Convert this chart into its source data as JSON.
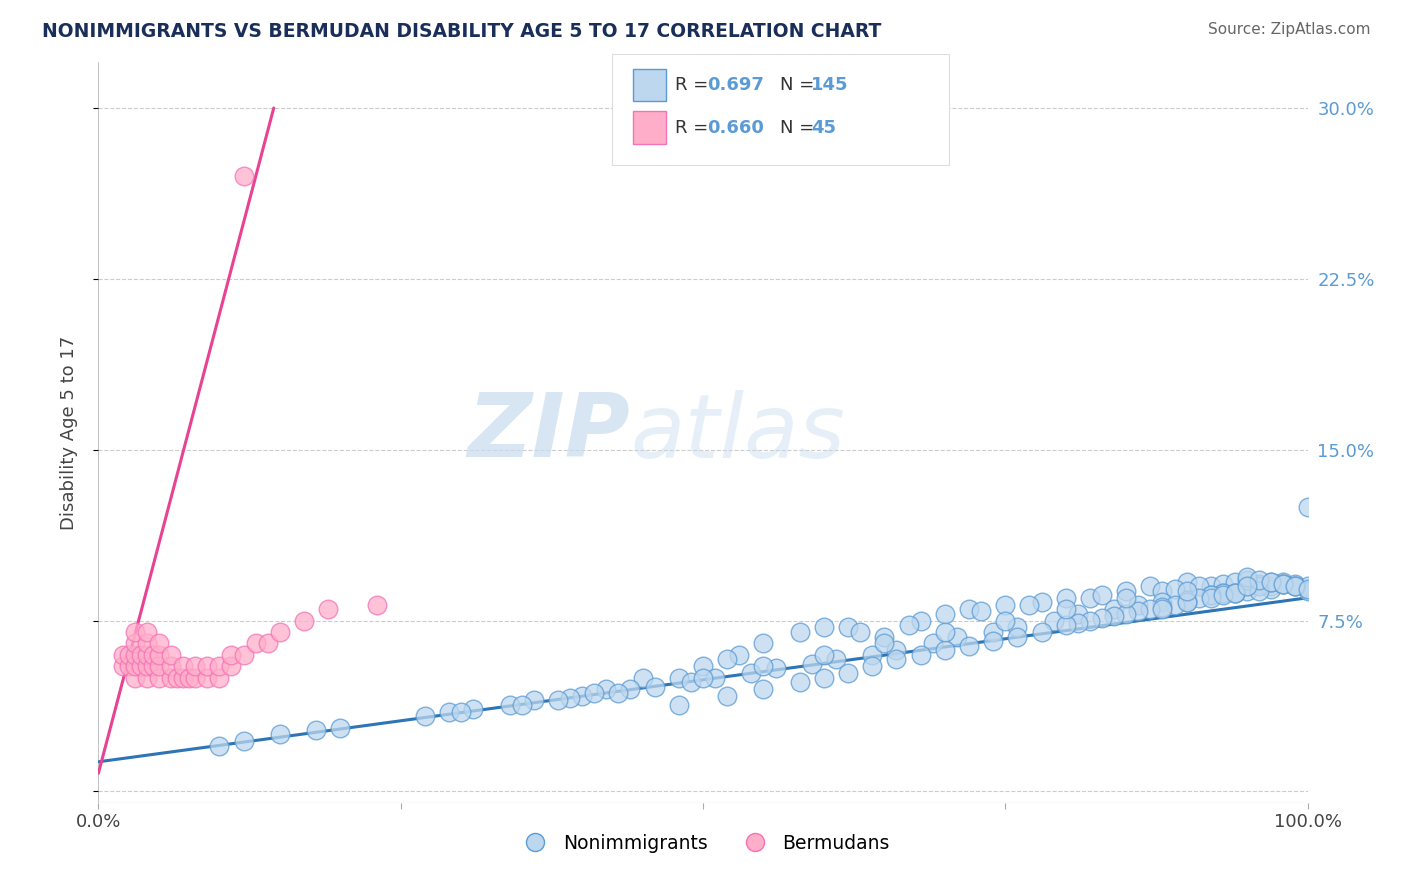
{
  "title": "NONIMMIGRANTS VS BERMUDAN DISABILITY AGE 5 TO 17 CORRELATION CHART",
  "source": "Source: ZipAtlas.com",
  "ylabel": "Disability Age 5 to 17",
  "xlim": [
    0.0,
    1.0
  ],
  "ylim": [
    -0.005,
    0.32
  ],
  "xticks": [
    0.0,
    0.25,
    0.5,
    0.75,
    1.0
  ],
  "xticklabels": [
    "0.0%",
    "",
    "",
    "",
    "100.0%"
  ],
  "yticks_right": [
    0.0,
    0.075,
    0.15,
    0.225,
    0.3
  ],
  "yticklabels_right": [
    "",
    "7.5%",
    "15.0%",
    "22.5%",
    "30.0%"
  ],
  "watermark_zip": "ZIP",
  "watermark_atlas": "atlas",
  "legend_r1": "0.697",
  "legend_n1": "145",
  "legend_r2": "0.660",
  "legend_n2": "45",
  "blue_color": "#5B9BD5",
  "pink_color": "#F472B6",
  "blue_fill": "#BDD7EE",
  "pink_fill": "#FFAEC9",
  "trend_blue": "#2E75B6",
  "trend_pink": "#E84393",
  "background": "#FFFFFF",
  "grid_color": "#CCCCCC",
  "blue_trend_x": [
    0.0,
    1.0
  ],
  "blue_trend_y": [
    0.013,
    0.085
  ],
  "pink_trend_x": [
    0.0,
    0.145
  ],
  "pink_trend_y": [
    0.008,
    0.3
  ],
  "blue_scatter_x": [
    0.5,
    0.53,
    0.48,
    0.55,
    0.42,
    0.45,
    0.4,
    0.58,
    0.6,
    0.52,
    0.62,
    0.65,
    0.68,
    0.63,
    0.7,
    0.72,
    0.67,
    0.75,
    0.73,
    0.78,
    0.8,
    0.77,
    0.82,
    0.85,
    0.83,
    0.87,
    0.88,
    0.9,
    0.92,
    0.89,
    0.91,
    0.93,
    0.94,
    0.95,
    0.96,
    0.97,
    0.98,
    0.99,
    1.0,
    0.95,
    0.93,
    0.97,
    0.96,
    0.98,
    0.99,
    1.0,
    0.94,
    0.92,
    0.9,
    0.88,
    0.86,
    0.84,
    0.81,
    0.79,
    0.76,
    0.74,
    0.71,
    0.69,
    0.66,
    0.64,
    0.61,
    0.59,
    0.56,
    0.54,
    0.51,
    0.49,
    0.46,
    0.44,
    0.41,
    0.39,
    0.36,
    0.34,
    0.31,
    0.29,
    0.27,
    0.2,
    0.18,
    0.15,
    0.12,
    0.1,
    0.95,
    0.97,
    0.98,
    0.99,
    1.0,
    0.93,
    0.92,
    0.91,
    0.96,
    0.94,
    0.9,
    0.89,
    0.88,
    0.87,
    0.86,
    0.85,
    0.84,
    0.83,
    0.82,
    0.81,
    0.8,
    0.78,
    0.76,
    0.74,
    0.72,
    0.7,
    0.68,
    0.66,
    0.64,
    0.62,
    0.6,
    0.58,
    0.55,
    0.52,
    0.48,
    0.95,
    0.96,
    0.97,
    0.98,
    0.99,
    1.0,
    0.92,
    0.93,
    0.94,
    0.9,
    0.88,
    0.3,
    0.35,
    0.38,
    0.43,
    0.5,
    0.55,
    0.6,
    0.65,
    0.7,
    0.75,
    0.8,
    0.85,
    0.9,
    0.95
  ],
  "blue_scatter_y": [
    0.055,
    0.06,
    0.05,
    0.065,
    0.045,
    0.05,
    0.042,
    0.07,
    0.072,
    0.058,
    0.072,
    0.068,
    0.075,
    0.07,
    0.078,
    0.08,
    0.073,
    0.082,
    0.079,
    0.083,
    0.085,
    0.082,
    0.085,
    0.088,
    0.086,
    0.09,
    0.088,
    0.092,
    0.09,
    0.089,
    0.09,
    0.091,
    0.092,
    0.09,
    0.091,
    0.09,
    0.092,
    0.091,
    0.09,
    0.088,
    0.087,
    0.089,
    0.09,
    0.091,
    0.09,
    0.088,
    0.087,
    0.086,
    0.084,
    0.083,
    0.082,
    0.08,
    0.078,
    0.075,
    0.072,
    0.07,
    0.068,
    0.065,
    0.062,
    0.06,
    0.058,
    0.056,
    0.054,
    0.052,
    0.05,
    0.048,
    0.046,
    0.045,
    0.043,
    0.041,
    0.04,
    0.038,
    0.036,
    0.035,
    0.033,
    0.028,
    0.027,
    0.025,
    0.022,
    0.02,
    0.093,
    0.092,
    0.091,
    0.09,
    0.125,
    0.087,
    0.086,
    0.085,
    0.088,
    0.087,
    0.083,
    0.082,
    0.081,
    0.08,
    0.079,
    0.078,
    0.077,
    0.076,
    0.075,
    0.074,
    0.073,
    0.07,
    0.068,
    0.066,
    0.064,
    0.062,
    0.06,
    0.058,
    0.055,
    0.052,
    0.05,
    0.048,
    0.045,
    0.042,
    0.038,
    0.094,
    0.093,
    0.092,
    0.091,
    0.09,
    0.089,
    0.085,
    0.086,
    0.087,
    0.083,
    0.08,
    0.035,
    0.038,
    0.04,
    0.043,
    0.05,
    0.055,
    0.06,
    0.065,
    0.07,
    0.075,
    0.08,
    0.085,
    0.088,
    0.09
  ],
  "pink_scatter_x": [
    0.02,
    0.02,
    0.025,
    0.025,
    0.03,
    0.03,
    0.03,
    0.03,
    0.03,
    0.035,
    0.035,
    0.04,
    0.04,
    0.04,
    0.04,
    0.04,
    0.045,
    0.045,
    0.05,
    0.05,
    0.05,
    0.05,
    0.06,
    0.06,
    0.06,
    0.065,
    0.07,
    0.07,
    0.075,
    0.08,
    0.08,
    0.09,
    0.09,
    0.1,
    0.1,
    0.11,
    0.11,
    0.12,
    0.13,
    0.14,
    0.15,
    0.17,
    0.19,
    0.23,
    0.12
  ],
  "pink_scatter_y": [
    0.055,
    0.06,
    0.055,
    0.06,
    0.05,
    0.055,
    0.06,
    0.065,
    0.07,
    0.055,
    0.06,
    0.05,
    0.055,
    0.06,
    0.065,
    0.07,
    0.055,
    0.06,
    0.05,
    0.055,
    0.06,
    0.065,
    0.05,
    0.055,
    0.06,
    0.05,
    0.05,
    0.055,
    0.05,
    0.05,
    0.055,
    0.05,
    0.055,
    0.05,
    0.055,
    0.055,
    0.06,
    0.06,
    0.065,
    0.065,
    0.07,
    0.075,
    0.08,
    0.082,
    0.27
  ]
}
